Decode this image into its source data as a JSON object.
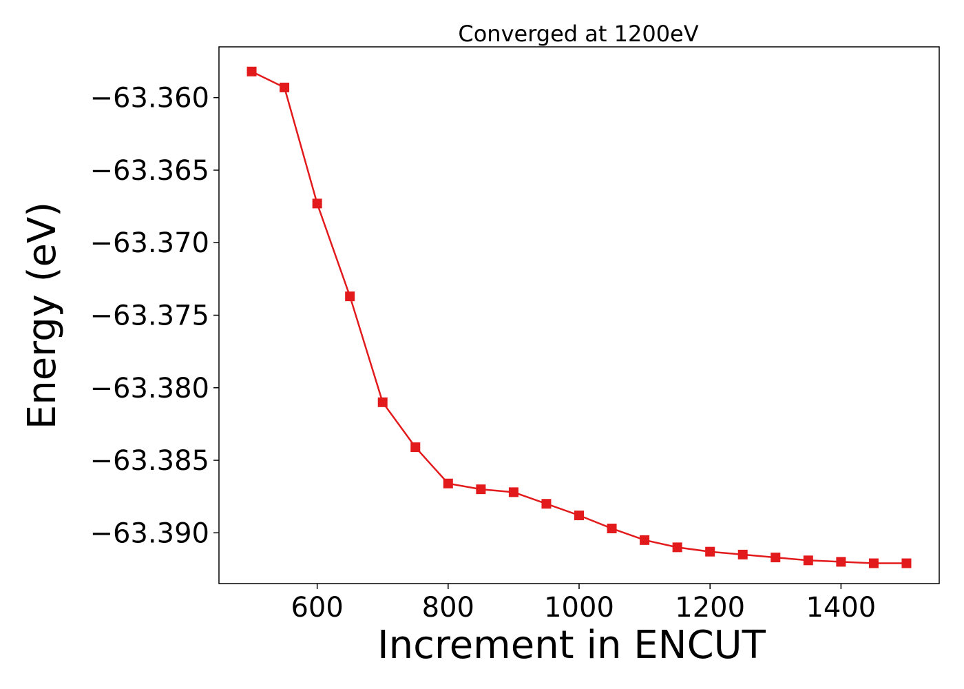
{
  "chart_data": {
    "type": "line",
    "title": "Converged at 1200eV",
    "xlabel": "Increment in ENCUT",
    "ylabel": "Energy (eV)",
    "xlim": [
      450,
      1550
    ],
    "ylim": [
      -63.3935,
      -63.3565
    ],
    "xticks": [
      600,
      800,
      1000,
      1200,
      1400
    ],
    "xtick_labels": [
      "600",
      "800",
      "1000",
      "1200",
      "1400"
    ],
    "yticks": [
      -63.36,
      -63.365,
      -63.37,
      -63.375,
      -63.38,
      -63.385,
      -63.39
    ],
    "ytick_labels": [
      "−63.360",
      "−63.365",
      "−63.370",
      "−63.375",
      "−63.380",
      "−63.385",
      "−63.390"
    ],
    "grid": false,
    "series": [
      {
        "color": "#e31a1c",
        "marker": "square",
        "x": [
          500,
          550,
          600,
          650,
          700,
          750,
          800,
          850,
          900,
          950,
          1000,
          1050,
          1100,
          1150,
          1200,
          1250,
          1300,
          1350,
          1400,
          1450,
          1500
        ],
        "y": [
          -63.3582,
          -63.3593,
          -63.3673,
          -63.3737,
          -63.381,
          -63.3841,
          -63.3866,
          -63.387,
          -63.3872,
          -63.388,
          -63.3888,
          -63.3897,
          -63.3905,
          -63.391,
          -63.3913,
          -63.3915,
          -63.3917,
          -63.3919,
          -63.392,
          -63.3921,
          -63.3921
        ]
      }
    ]
  }
}
